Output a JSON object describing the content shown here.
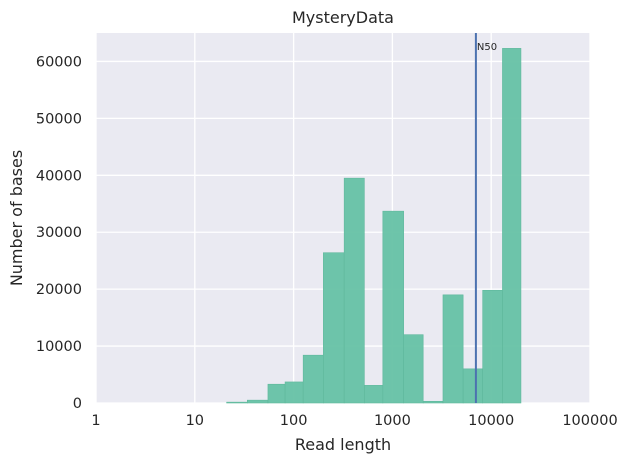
{
  "chart_data": {
    "type": "bar",
    "title": "MysteryData",
    "xlabel": "Read length",
    "ylabel": "Number of bases",
    "x_scale": "log",
    "xlim": [
      1,
      100000
    ],
    "ylim": [
      0,
      65000
    ],
    "x_ticks": [
      {
        "value": 1,
        "label": "1"
      },
      {
        "value": 10,
        "label": "10"
      },
      {
        "value": 100,
        "label": "100"
      },
      {
        "value": 1000,
        "label": "1000"
      },
      {
        "value": 10000,
        "label": "10000"
      },
      {
        "value": 100000,
        "label": "100000"
      }
    ],
    "y_ticks": [
      {
        "value": 0,
        "label": "0"
      },
      {
        "value": 10000,
        "label": "10000"
      },
      {
        "value": 20000,
        "label": "20000"
      },
      {
        "value": 30000,
        "label": "30000"
      },
      {
        "value": 40000,
        "label": "40000"
      },
      {
        "value": 50000,
        "label": "50000"
      },
      {
        "value": 60000,
        "label": "60000"
      }
    ],
    "grid": true,
    "bar_color": "#66c2a5",
    "background": "#eaeaf2",
    "bins": [
      {
        "x0": 21,
        "x1": 34,
        "value": 150
      },
      {
        "x0": 34,
        "x1": 55,
        "value": 500
      },
      {
        "x0": 55,
        "x1": 82,
        "value": 3300
      },
      {
        "x0": 82,
        "x1": 125,
        "value": 3700
      },
      {
        "x0": 125,
        "x1": 200,
        "value": 8400
      },
      {
        "x0": 200,
        "x1": 325,
        "value": 26400
      },
      {
        "x0": 325,
        "x1": 520,
        "value": 39500
      },
      {
        "x0": 520,
        "x1": 800,
        "value": 3100
      },
      {
        "x0": 800,
        "x1": 1300,
        "value": 33700
      },
      {
        "x0": 1300,
        "x1": 2050,
        "value": 12000
      },
      {
        "x0": 2050,
        "x1": 3250,
        "value": 300
      },
      {
        "x0": 3250,
        "x1": 5200,
        "value": 19000
      },
      {
        "x0": 5200,
        "x1": 8200,
        "value": 6000
      },
      {
        "x0": 8200,
        "x1": 13000,
        "value": 19800
      },
      {
        "x0": 13000,
        "x1": 20000,
        "value": 62300
      }
    ],
    "annotations": [
      {
        "type": "vline",
        "x": 7000,
        "label": "N50",
        "color": "#4c72b0"
      }
    ]
  }
}
